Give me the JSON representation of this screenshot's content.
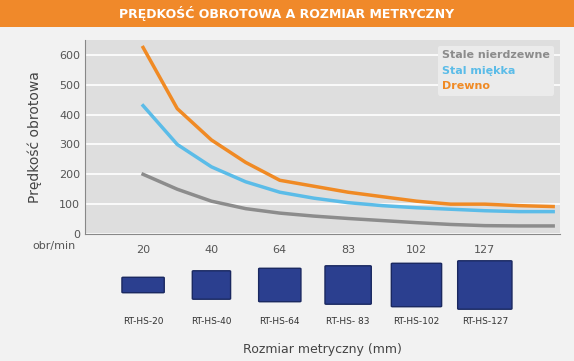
{
  "chart_data": {
    "type": "line",
    "title": "PRĘDKOŚĆ OBROTOWA A ROZMIAR METRYCZNY",
    "y_label": "Prędkość obrotowa",
    "y_unit": "obr/min",
    "x_label": "Rozmiar metryczny (mm)",
    "categories": [
      "20",
      null,
      "40",
      null,
      "64",
      null,
      "83",
      null,
      "102",
      null,
      "127",
      null,
      null
    ],
    "product_labels": [
      "RT-HS-20",
      "RT-HS-40",
      "RT-HS-64",
      "RT-HS- 83",
      "RT-HS-102",
      "RT-HS-127"
    ],
    "series": [
      {
        "name": "Stale nierdzewne",
        "color": "#8c8c8c",
        "values": [
          200,
          150,
          110,
          85,
          70,
          60,
          52,
          45,
          38,
          32,
          28,
          27,
          27
        ]
      },
      {
        "name": "Stal miękka",
        "color": "#5bbce8",
        "values": [
          430,
          300,
          225,
          175,
          140,
          120,
          105,
          95,
          88,
          83,
          78,
          75,
          75
        ]
      },
      {
        "name": "Drewno",
        "color": "#f08a24",
        "values": [
          625,
          420,
          315,
          240,
          180,
          160,
          140,
          125,
          110,
          100,
          100,
          95,
          92
        ]
      }
    ],
    "ylim": [
      0,
      650
    ],
    "yticks": [
      0,
      100,
      200,
      300,
      400,
      500,
      600
    ],
    "grid": true,
    "legend": "upper right"
  }
}
